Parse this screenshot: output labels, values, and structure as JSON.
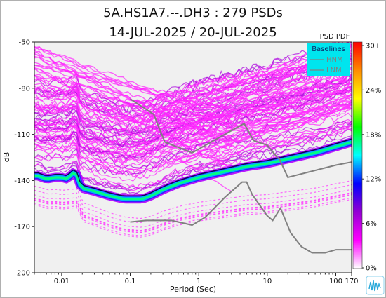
{
  "chart_data": {
    "type": "heatmap",
    "title": "5A.HS1A7.--.DH3 : 279 PSDs",
    "subtitle": "14-JUL-2025 / 20-JUL-2025",
    "xlabel": "Period (Sec)",
    "ylabel": "dB",
    "x_scale": "log",
    "xlim": [
      0.004,
      170
    ],
    "ylim": [
      -200,
      -50
    ],
    "x_ticks": [
      "0.01",
      "0.1",
      "1",
      "10",
      "100",
      "170"
    ],
    "y_ticks": [
      "-50",
      "-80",
      "-110",
      "-140",
      "-170",
      "-200"
    ],
    "colorbar": {
      "title": "PSD PDF",
      "labels": [
        "30+",
        "24%",
        "18%",
        "12%",
        "6%",
        "0%"
      ],
      "colors": [
        "#ffffff",
        "#ff00ff",
        "#9400d3",
        "#0000ff",
        "#00ffff",
        "#00ff00",
        "#ffff00",
        "#ff8c00",
        "#ff0000"
      ]
    },
    "legend": {
      "title": "Baselines",
      "placement": "top-right",
      "entries": [
        "HNM",
        "LNM"
      ]
    },
    "series": [
      {
        "name": "HNM",
        "color": "#808080",
        "points": [
          [
            0.1,
            -87
          ],
          [
            0.22,
            -97
          ],
          [
            0.32,
            -115
          ],
          [
            0.8,
            -122
          ],
          [
            3.8,
            -105
          ],
          [
            4.6,
            -103
          ],
          [
            6.3,
            -114
          ],
          [
            10,
            -117
          ],
          [
            14,
            -125
          ],
          [
            15,
            -126
          ],
          [
            20,
            -138
          ],
          [
            100,
            -130
          ],
          [
            170,
            -128
          ]
        ]
      },
      {
        "name": "LNM",
        "color": "#808080",
        "points": [
          [
            0.1,
            -167
          ],
          [
            0.17,
            -166
          ],
          [
            0.4,
            -166
          ],
          [
            0.8,
            -169
          ],
          [
            1.24,
            -164
          ],
          [
            2.4,
            -151
          ],
          [
            4.3,
            -141
          ],
          [
            5,
            -141
          ],
          [
            6,
            -149
          ],
          [
            10,
            -163
          ],
          [
            12,
            -166
          ],
          [
            15.6,
            -158
          ],
          [
            21.9,
            -174
          ],
          [
            31.6,
            -183
          ],
          [
            45,
            -187
          ],
          [
            70,
            -187
          ],
          [
            101,
            -185
          ],
          [
            170,
            -185
          ]
        ]
      }
    ],
    "psd_density": {
      "mode_curve": [
        [
          0.0045,
          -137
        ],
        [
          0.006,
          -139
        ],
        [
          0.008,
          -138
        ],
        [
          0.01,
          -138
        ],
        [
          0.012,
          -139
        ],
        [
          0.014,
          -136
        ],
        [
          0.016,
          -134
        ],
        [
          0.018,
          -142
        ],
        [
          0.02,
          -145
        ],
        [
          0.03,
          -147
        ],
        [
          0.05,
          -150
        ],
        [
          0.08,
          -152
        ],
        [
          0.1,
          -152
        ],
        [
          0.15,
          -152
        ],
        [
          0.2,
          -150
        ],
        [
          0.3,
          -146
        ],
        [
          0.5,
          -142
        ],
        [
          1,
          -138
        ],
        [
          2,
          -135
        ],
        [
          5,
          -131
        ],
        [
          10,
          -129
        ],
        [
          20,
          -126
        ],
        [
          50,
          -122
        ],
        [
          100,
          -118
        ],
        [
          170,
          -115
        ]
      ]
    }
  }
}
